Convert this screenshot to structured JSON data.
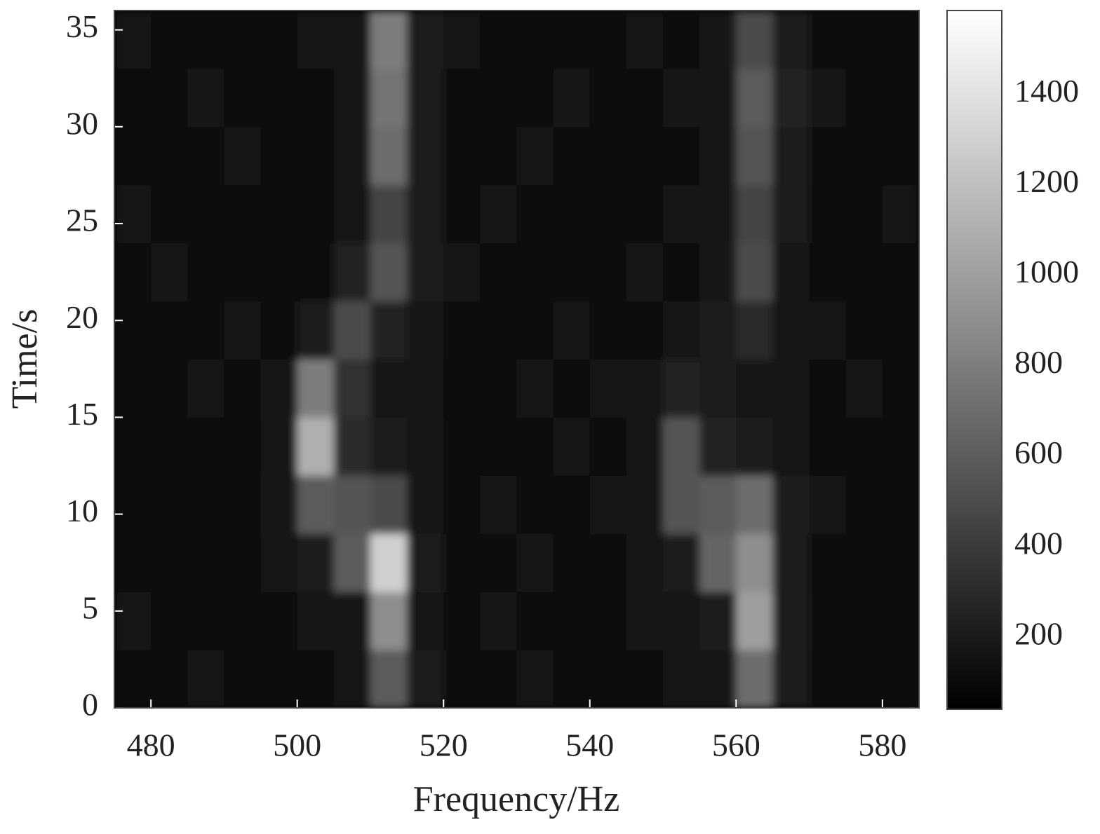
{
  "chart_data": {
    "type": "heatmap",
    "colormap": "gray",
    "xlabel": "Frequency/Hz",
    "ylabel": "Time/s",
    "x": [
      477.5,
      482.5,
      487.5,
      492.5,
      497.5,
      502.5,
      507.5,
      512.5,
      517.5,
      522.5,
      527.5,
      532.5,
      537.5,
      542.5,
      547.5,
      552.5,
      557.5,
      562.5,
      567.5,
      572.5,
      577.5,
      582.5
    ],
    "y": [
      1.5,
      4.5,
      7.5,
      10.5,
      13.5,
      16.5,
      19.5,
      22.5,
      25.5,
      28.5,
      31.5,
      34.5
    ],
    "z": [
      [
        130,
        110,
        150,
        120,
        100,
        140,
        160,
        600,
        200,
        120,
        110,
        150,
        130,
        120,
        140,
        160,
        180,
        700,
        200,
        130,
        120,
        110
      ],
      [
        150,
        130,
        120,
        110,
        140,
        160,
        180,
        900,
        190,
        130,
        150,
        120,
        140,
        130,
        160,
        170,
        200,
        1000,
        220,
        140,
        130,
        120
      ],
      [
        120,
        140,
        130,
        120,
        150,
        200,
        600,
        1300,
        220,
        140,
        120,
        160,
        130,
        140,
        150,
        200,
        650,
        900,
        210,
        130,
        140,
        120
      ],
      [
        130,
        120,
        140,
        110,
        160,
        600,
        550,
        500,
        180,
        130,
        150,
        140,
        120,
        160,
        170,
        550,
        600,
        700,
        200,
        150,
        130,
        140
      ],
      [
        110,
        130,
        120,
        140,
        150,
        1100,
        300,
        200,
        160,
        140,
        130,
        120,
        150,
        130,
        160,
        550,
        250,
        200,
        170,
        140,
        120,
        130
      ],
      [
        140,
        120,
        150,
        130,
        160,
        800,
        350,
        180,
        150,
        130,
        140,
        160,
        120,
        170,
        150,
        250,
        200,
        180,
        160,
        130,
        150,
        120
      ],
      [
        120,
        140,
        130,
        150,
        140,
        200,
        500,
        250,
        160,
        140,
        120,
        130,
        150,
        140,
        130,
        160,
        200,
        300,
        170,
        150,
        140,
        130
      ],
      [
        130,
        150,
        140,
        120,
        110,
        130,
        250,
        550,
        200,
        150,
        130,
        140,
        120,
        130,
        150,
        140,
        180,
        500,
        190,
        140,
        130,
        120
      ],
      [
        150,
        130,
        120,
        140,
        130,
        120,
        160,
        450,
        220,
        140,
        150,
        130,
        140,
        120,
        130,
        150,
        170,
        450,
        200,
        130,
        140,
        150
      ],
      [
        140,
        120,
        130,
        150,
        140,
        130,
        150,
        700,
        210,
        130,
        140,
        150,
        130,
        140,
        120,
        140,
        180,
        550,
        230,
        140,
        120,
        130
      ],
      [
        130,
        140,
        150,
        120,
        130,
        140,
        160,
        750,
        200,
        140,
        130,
        120,
        150,
        130,
        140,
        150,
        170,
        600,
        260,
        150,
        130,
        140
      ],
      [
        150,
        140,
        120,
        130,
        140,
        150,
        170,
        800,
        210,
        150,
        140,
        130,
        120,
        140,
        150,
        130,
        180,
        500,
        220,
        140,
        130,
        120
      ]
    ],
    "xlim": [
      475,
      585
    ],
    "ylim": [
      0,
      36
    ],
    "xticks": [
      480,
      500,
      520,
      540,
      560,
      580
    ],
    "yticks": [
      0,
      5,
      10,
      15,
      20,
      25,
      30,
      35
    ],
    "clim": [
      40,
      1585
    ],
    "colorbar_ticks": [
      200,
      400,
      600,
      800,
      1000,
      1200,
      1400
    ]
  }
}
